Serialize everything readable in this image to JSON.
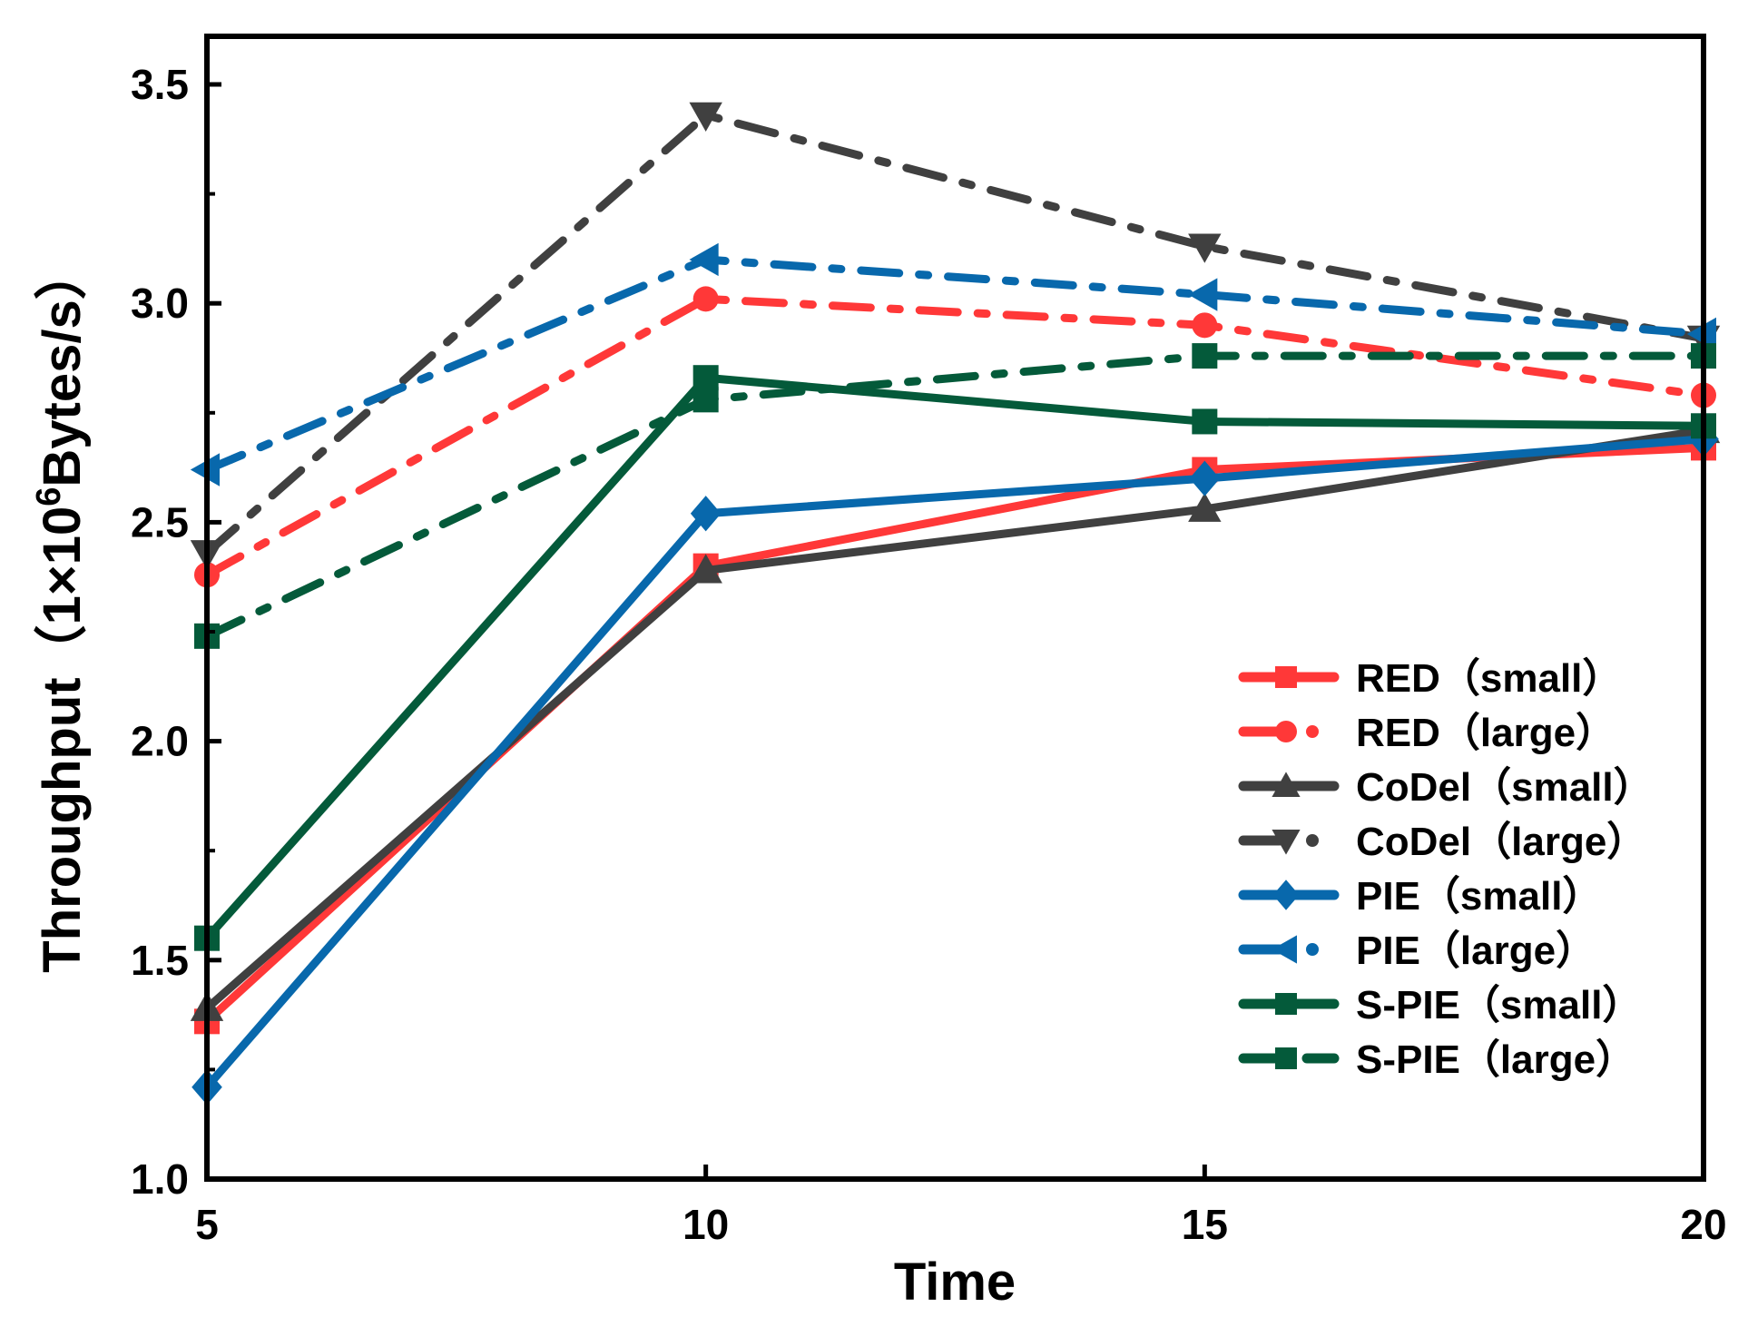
{
  "chart_data": {
    "type": "line",
    "title": "",
    "xlabel": "Time",
    "ylabel_parts": [
      "Throughput（1×10",
      "6",
      "Bytes/s）"
    ],
    "x": [
      5,
      10,
      15,
      20
    ],
    "xlim": [
      5,
      20
    ],
    "ylim": [
      1.0,
      3.6
    ],
    "xticks": [
      "5",
      "10",
      "15",
      "20"
    ],
    "yticks": [
      "1.0",
      "1.5",
      "2.0",
      "2.5",
      "3.0",
      "3.5"
    ],
    "grid": false,
    "legend_position": "bottom-right",
    "series": [
      {
        "name": "RED（small）",
        "color": "#FF3838",
        "style": "solid",
        "marker": "square",
        "values": [
          1.36,
          2.4,
          2.62,
          2.67
        ]
      },
      {
        "name": "RED（large）",
        "color": "#FF3838",
        "style": "dashdot",
        "marker": "circle",
        "values": [
          2.38,
          3.01,
          2.95,
          2.79
        ]
      },
      {
        "name": "CoDel（small）",
        "color": "#404040",
        "style": "solid",
        "marker": "triangle-up",
        "values": [
          1.39,
          2.39,
          2.53,
          2.71
        ]
      },
      {
        "name": "CoDel（large）",
        "color": "#404040",
        "style": "dashdot",
        "marker": "triangle-down",
        "values": [
          2.43,
          3.43,
          3.13,
          2.92
        ]
      },
      {
        "name": "PIE（small）",
        "color": "#0868AC",
        "style": "solid",
        "marker": "diamond",
        "values": [
          1.21,
          2.52,
          2.6,
          2.69
        ]
      },
      {
        "name": "PIE（large）",
        "color": "#0868AC",
        "style": "dashdot",
        "marker": "triangle-left",
        "values": [
          2.62,
          3.1,
          3.02,
          2.93
        ]
      },
      {
        "name": "S-PIE（small）",
        "color": "#045A3A",
        "style": "solid",
        "marker": "square",
        "values": [
          1.55,
          2.83,
          2.73,
          2.72
        ]
      },
      {
        "name": "S-PIE（large）",
        "color": "#045A3A",
        "style": "dashdot",
        "marker": "square",
        "values": [
          2.24,
          2.78,
          2.88,
          2.88
        ]
      }
    ]
  }
}
